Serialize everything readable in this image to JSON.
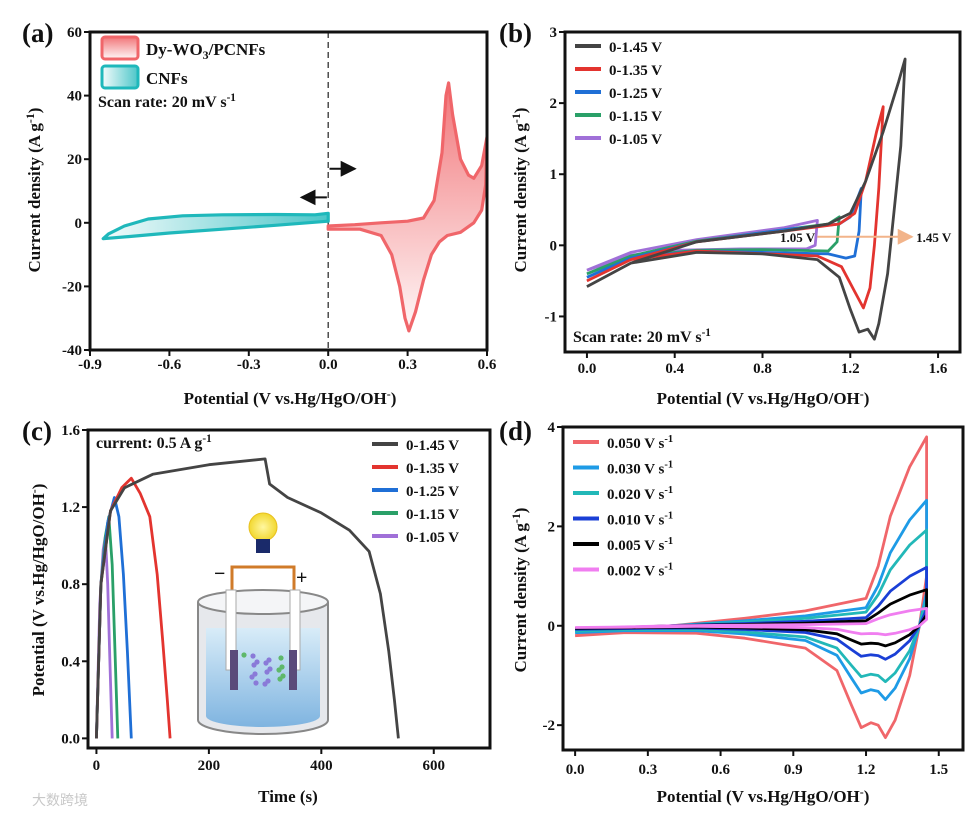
{
  "chart_data": [
    {
      "panel": "(a)",
      "type": "line",
      "xlabel": "Potential (V vs.Hg/HgO/OH",
      "xlabel_sup": "-",
      "xlabel_end": ")",
      "ylabel": "Current density (A g",
      "ylabel_sup": "-1",
      "ylabel_end": ")",
      "xlim": [
        -0.9,
        0.6
      ],
      "ylim": [
        -40,
        60
      ],
      "xticks": [
        "-0.9",
        "-0.6",
        "-0.3",
        "0.0",
        "0.3",
        "0.6"
      ],
      "xtick_values": [
        -0.9,
        -0.6,
        -0.3,
        0,
        0.3,
        0.6
      ],
      "yticks": [
        "-40",
        "-20",
        "0",
        "20",
        "40",
        "60"
      ],
      "ytick_values": [
        -40,
        -20,
        0,
        20,
        40,
        60
      ],
      "annotation": "Scan rate: 20 mV s",
      "annotation_sup": "-1",
      "legend": "top-left",
      "series": [
        {
          "name": "Dy-WO3/PCNFs",
          "color": "#f0666a",
          "fill": true,
          "points": [
            [
              0,
              -1
            ],
            [
              0.1,
              -0.6
            ],
            [
              0.2,
              0
            ],
            [
              0.3,
              0.5
            ],
            [
              0.36,
              1.5
            ],
            [
              0.4,
              7
            ],
            [
              0.43,
              22
            ],
            [
              0.445,
              40
            ],
            [
              0.455,
              44
            ],
            [
              0.47,
              34
            ],
            [
              0.5,
              20
            ],
            [
              0.53,
              15
            ],
            [
              0.55,
              14
            ],
            [
              0.58,
              18
            ],
            [
              0.6,
              27
            ],
            [
              0.595,
              12
            ],
            [
              0.58,
              4
            ],
            [
              0.55,
              0
            ],
            [
              0.5,
              -3
            ],
            [
              0.45,
              -4
            ],
            [
              0.42,
              -6
            ],
            [
              0.39,
              -10
            ],
            [
              0.36,
              -18
            ],
            [
              0.33,
              -28
            ],
            [
              0.305,
              -34
            ],
            [
              0.29,
              -30
            ],
            [
              0.27,
              -20
            ],
            [
              0.24,
              -10
            ],
            [
              0.2,
              -4
            ],
            [
              0.12,
              -2
            ],
            [
              0,
              -2
            ]
          ]
        },
        {
          "name": "CNFs",
          "color": "#1fb8bb",
          "fill": true,
          "points": [
            [
              0,
              3
            ],
            [
              -0.05,
              2.5
            ],
            [
              -0.2,
              2.6
            ],
            [
              -0.4,
              2.5
            ],
            [
              -0.55,
              2.2
            ],
            [
              -0.68,
              1.2
            ],
            [
              -0.77,
              -1
            ],
            [
              -0.83,
              -3.5
            ],
            [
              -0.85,
              -5
            ],
            [
              -0.75,
              -4.3
            ],
            [
              -0.6,
              -3.2
            ],
            [
              -0.4,
              -2
            ],
            [
              -0.2,
              -0.8
            ],
            [
              0,
              0.5
            ]
          ]
        }
      ]
    },
    {
      "panel": "(b)",
      "type": "line",
      "xlabel": "Potential (V vs.Hg/HgO/OH",
      "xlabel_sup": "-",
      "xlabel_end": ")",
      "ylabel": "Current density (A g",
      "ylabel_sup": "-1",
      "ylabel_end": ")",
      "xlim": [
        -0.1,
        1.7
      ],
      "ylim": [
        -1.5,
        3
      ],
      "xticks": [
        "0.0",
        "0.4",
        "0.8",
        "1.2",
        "1.6"
      ],
      "xtick_values": [
        0,
        0.4,
        0.8,
        1.2,
        1.6
      ],
      "yticks": [
        "-1",
        "0",
        "1",
        "2",
        "3"
      ],
      "ytick_values": [
        -1,
        0,
        1,
        2,
        3
      ],
      "annotation": "Scan rate: 20 mV s",
      "annotation_sup": "-1",
      "arrow_from_label": "1.05 V",
      "arrow_to_label": "1.45 V",
      "legend": "top-left",
      "series": [
        {
          "name": "0-1.45 V",
          "color": "#444444",
          "points": [
            [
              0,
              -0.58
            ],
            [
              0.2,
              -0.25
            ],
            [
              0.5,
              0.05
            ],
            [
              0.9,
              0.2
            ],
            [
              1.1,
              0.3
            ],
            [
              1.2,
              0.45
            ],
            [
              1.27,
              0.9
            ],
            [
              1.35,
              1.6
            ],
            [
              1.42,
              2.3
            ],
            [
              1.45,
              2.62
            ],
            [
              1.43,
              1.4
            ],
            [
              1.4,
              0.5
            ],
            [
              1.37,
              -0.4
            ],
            [
              1.33,
              -1.1
            ],
            [
              1.31,
              -1.32
            ],
            [
              1.28,
              -1.18
            ],
            [
              1.24,
              -1.22
            ],
            [
              1.2,
              -0.9
            ],
            [
              1.15,
              -0.45
            ],
            [
              1.05,
              -0.2
            ],
            [
              0.8,
              -0.12
            ],
            [
              0.5,
              -0.1
            ],
            [
              0.2,
              -0.25
            ],
            [
              0,
              -0.58
            ]
          ]
        },
        {
          "name": "0-1.35 V",
          "color": "#e3342f",
          "points": [
            [
              0,
              -0.5
            ],
            [
              0.2,
              -0.2
            ],
            [
              0.5,
              0.05
            ],
            [
              0.9,
              0.2
            ],
            [
              1.15,
              0.3
            ],
            [
              1.22,
              0.45
            ],
            [
              1.27,
              0.9
            ],
            [
              1.32,
              1.6
            ],
            [
              1.35,
              1.95
            ],
            [
              1.33,
              0.8
            ],
            [
              1.31,
              0
            ],
            [
              1.29,
              -0.6
            ],
            [
              1.26,
              -0.88
            ],
            [
              1.22,
              -0.65
            ],
            [
              1.16,
              -0.3
            ],
            [
              1.05,
              -0.15
            ],
            [
              0.5,
              -0.08
            ],
            [
              0.2,
              -0.2
            ],
            [
              0,
              -0.5
            ]
          ]
        },
        {
          "name": "0-1.25 V",
          "color": "#1f6fd6",
          "points": [
            [
              0,
              -0.45
            ],
            [
              0.2,
              -0.18
            ],
            [
              0.5,
              0.05
            ],
            [
              0.9,
              0.22
            ],
            [
              1.15,
              0.3
            ],
            [
              1.2,
              0.4
            ],
            [
              1.25,
              0.8
            ],
            [
              1.24,
              0.2
            ],
            [
              1.22,
              -0.15
            ],
            [
              1.18,
              -0.18
            ],
            [
              1.1,
              -0.12
            ],
            [
              0.5,
              -0.08
            ],
            [
              0.2,
              -0.18
            ],
            [
              0,
              -0.45
            ]
          ]
        },
        {
          "name": "0-1.15 V",
          "color": "#2aa068",
          "points": [
            [
              0,
              -0.4
            ],
            [
              0.2,
              -0.15
            ],
            [
              0.5,
              0.06
            ],
            [
              0.9,
              0.22
            ],
            [
              1.1,
              0.3
            ],
            [
              1.15,
              0.4
            ],
            [
              1.14,
              0.05
            ],
            [
              1.1,
              -0.08
            ],
            [
              0.8,
              -0.06
            ],
            [
              0.5,
              -0.07
            ],
            [
              0.2,
              -0.16
            ],
            [
              0,
              -0.4
            ]
          ]
        },
        {
          "name": "0-1.05 V",
          "color": "#a070d8",
          "points": [
            [
              0,
              -0.35
            ],
            [
              0.2,
              -0.1
            ],
            [
              0.5,
              0.08
            ],
            [
              0.9,
              0.25
            ],
            [
              1.05,
              0.35
            ],
            [
              1.04,
              0.0
            ],
            [
              1.0,
              -0.05
            ],
            [
              0.7,
              -0.05
            ],
            [
              0.4,
              -0.07
            ],
            [
              0.2,
              -0.14
            ],
            [
              0,
              -0.35
            ]
          ]
        }
      ]
    },
    {
      "panel": "(c)",
      "type": "line",
      "xlabel": "Time (s)",
      "ylabel": "Potential (V vs.Hg/HgO/OH",
      "ylabel_sup": "-",
      "ylabel_end": ")",
      "xlim": [
        -15,
        700
      ],
      "ylim": [
        -0.05,
        1.6
      ],
      "xticks": [
        "0",
        "200",
        "400",
        "600"
      ],
      "xtick_values": [
        0,
        200,
        400,
        600
      ],
      "yticks": [
        "0.0",
        "0.4",
        "0.8",
        "1.2",
        "1.6"
      ],
      "ytick_values": [
        0,
        0.4,
        0.8,
        1.2,
        1.6
      ],
      "annotation": "current: 0.5 A g",
      "annotation_sup": "-1",
      "inset_signs": [
        "−",
        "+"
      ],
      "legend": "top-right",
      "series": [
        {
          "name": "0-1.45 V",
          "color": "#444444",
          "points": [
            [
              0,
              0
            ],
            [
              8,
              0.8
            ],
            [
              25,
              1.18
            ],
            [
              50,
              1.3
            ],
            [
              100,
              1.37
            ],
            [
              200,
              1.42
            ],
            [
              300,
              1.45
            ],
            [
              308,
              1.32
            ],
            [
              340,
              1.25
            ],
            [
              400,
              1.17
            ],
            [
              450,
              1.08
            ],
            [
              485,
              0.97
            ],
            [
              505,
              0.75
            ],
            [
              520,
              0.45
            ],
            [
              530,
              0.2
            ],
            [
              537,
              0
            ]
          ]
        },
        {
          "name": "0-1.35 V",
          "color": "#e3342f",
          "points": [
            [
              0,
              0
            ],
            [
              8,
              0.8
            ],
            [
              25,
              1.18
            ],
            [
              45,
              1.3
            ],
            [
              62,
              1.35
            ],
            [
              78,
              1.27
            ],
            [
              95,
              1.15
            ],
            [
              108,
              0.85
            ],
            [
              118,
              0.5
            ],
            [
              126,
              0.2
            ],
            [
              131,
              0
            ]
          ]
        },
        {
          "name": "0-1.25 V",
          "color": "#1f6fd6",
          "points": [
            [
              0,
              0
            ],
            [
              8,
              0.8
            ],
            [
              20,
              1.12
            ],
            [
              32,
              1.25
            ],
            [
              40,
              1.15
            ],
            [
              48,
              0.85
            ],
            [
              55,
              0.45
            ],
            [
              62,
              0
            ]
          ]
        },
        {
          "name": "0-1.15 V",
          "color": "#2aa068",
          "points": [
            [
              0,
              0
            ],
            [
              8,
              0.8
            ],
            [
              16,
              1.05
            ],
            [
              22,
              1.15
            ],
            [
              28,
              0.9
            ],
            [
              33,
              0.45
            ],
            [
              38,
              0
            ]
          ]
        },
        {
          "name": "0-1.05 V",
          "color": "#a070d8",
          "points": [
            [
              0,
              0
            ],
            [
              6,
              0.7
            ],
            [
              12,
              0.98
            ],
            [
              16,
              1.05
            ],
            [
              20,
              0.8
            ],
            [
              24,
              0.4
            ],
            [
              28,
              0
            ]
          ]
        }
      ]
    },
    {
      "panel": "(d)",
      "type": "line",
      "xlabel": "Potential (V vs.Hg/HgO/OH",
      "xlabel_sup": "-",
      "xlabel_end": ")",
      "ylabel": "Current density (A g",
      "ylabel_sup": "-1",
      "ylabel_end": ")",
      "xlim": [
        -0.05,
        1.6
      ],
      "ylim": [
        -2.5,
        4
      ],
      "xticks": [
        "0.0",
        "0.3",
        "0.6",
        "0.9",
        "1.2",
        "1.5"
      ],
      "xtick_values": [
        0,
        0.3,
        0.6,
        0.9,
        1.2,
        1.5
      ],
      "yticks": [
        "-2",
        "0",
        "2",
        "4"
      ],
      "ytick_values": [
        -2,
        0,
        2,
        4
      ],
      "legend": "top-left",
      "series": [
        {
          "name": "0.050 V s",
          "sup": "-1",
          "color": "#f0666a",
          "scale": 1.0
        },
        {
          "name": "0.030 V s",
          "sup": "-1",
          "color": "#1e9be6",
          "scale": 0.66
        },
        {
          "name": "0.020 V s",
          "sup": "-1",
          "color": "#22b8b8",
          "scale": 0.5
        },
        {
          "name": "0.010 V s",
          "sup": "-1",
          "color": "#1a3fd6",
          "scale": 0.3
        },
        {
          "name": "0.005 V s",
          "sup": "-1",
          "color": "#000000",
          "scale": 0.18
        },
        {
          "name": "0.002 V s",
          "sup": "-1",
          "color": "#f07ef0",
          "scale": 0.08
        }
      ],
      "base_loop": [
        [
          0,
          -0.18
        ],
        [
          0.15,
          -0.1
        ],
        [
          0.4,
          0
        ],
        [
          0.7,
          0.15
        ],
        [
          0.95,
          0.3
        ],
        [
          1.1,
          0.45
        ],
        [
          1.2,
          0.55
        ],
        [
          1.25,
          1.2
        ],
        [
          1.3,
          2.2
        ],
        [
          1.38,
          3.2
        ],
        [
          1.45,
          3.8
        ],
        [
          1.45,
          1.0
        ],
        [
          1.42,
          0.0
        ],
        [
          1.38,
          -1.0
        ],
        [
          1.32,
          -1.9
        ],
        [
          1.28,
          -2.25
        ],
        [
          1.25,
          -2.0
        ],
        [
          1.22,
          -1.95
        ],
        [
          1.18,
          -2.05
        ],
        [
          1.14,
          -1.6
        ],
        [
          1.08,
          -0.9
        ],
        [
          0.95,
          -0.45
        ],
        [
          0.7,
          -0.25
        ],
        [
          0.5,
          -0.15
        ],
        [
          0.2,
          -0.12
        ],
        [
          0,
          -0.18
        ]
      ]
    }
  ],
  "watermark": "大数跨境"
}
